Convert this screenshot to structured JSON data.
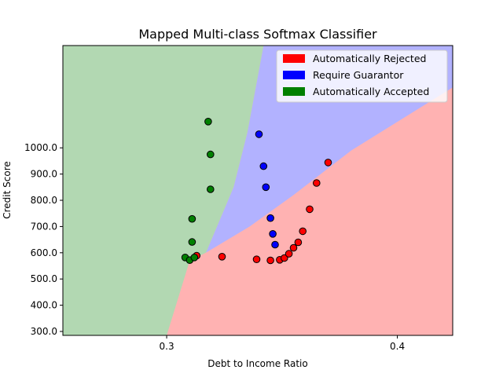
{
  "chart_data": {
    "type": "scatter",
    "title": "Mapped Multi-class Softmax Classifier",
    "xlabel": "Debt to Income Ratio",
    "ylabel": "Credit Score",
    "xlim": [
      0.255,
      0.424
    ],
    "ylim": [
      285,
      1390
    ],
    "xticks": [
      {
        "value": 0.3,
        "label": "0.3"
      },
      {
        "value": 0.4,
        "label": "0.4"
      }
    ],
    "yticks": [
      {
        "value": 300,
        "label": "300.0"
      },
      {
        "value": 400,
        "label": "400.0"
      },
      {
        "value": 500,
        "label": "500.0"
      },
      {
        "value": 600,
        "label": "600.0"
      },
      {
        "value": 700,
        "label": "700.0"
      },
      {
        "value": 800,
        "label": "800.0"
      },
      {
        "value": 900,
        "label": "900.0"
      },
      {
        "value": 1000,
        "label": "1000.0"
      }
    ],
    "grid": false,
    "legend_position": "top-right",
    "legend": [
      {
        "label": "Automatically Rejected",
        "color": "#ff0000"
      },
      {
        "label": "Require Guarantor",
        "color": "#0000ff"
      },
      {
        "label": "Automatically Accepted",
        "color": "#008000"
      }
    ],
    "regions": {
      "rejected_color": "#ffb2b2",
      "guarantor_color": "#b2b2ff",
      "accepted_color": "#b2d8b2",
      "accepted_boundary": [
        [
          0.3,
          285
        ],
        [
          0.31,
          570
        ],
        [
          0.317,
          600
        ],
        [
          0.329,
          850
        ],
        [
          0.335,
          1060
        ],
        [
          0.342,
          1390
        ]
      ],
      "rejected_boundary": [
        [
          0.317,
          600
        ],
        [
          0.336,
          700
        ],
        [
          0.355,
          820
        ],
        [
          0.38,
          990
        ],
        [
          0.424,
          1230
        ]
      ]
    },
    "series": [
      {
        "name": "Automatically Rejected",
        "color": "#ff0000",
        "points": [
          [
            0.313,
            589
          ],
          [
            0.324,
            585
          ],
          [
            0.339,
            575
          ],
          [
            0.345,
            571
          ],
          [
            0.349,
            573
          ],
          [
            0.351,
            580
          ],
          [
            0.353,
            596
          ],
          [
            0.355,
            619
          ],
          [
            0.357,
            640
          ],
          [
            0.359,
            682
          ],
          [
            0.362,
            766
          ],
          [
            0.365,
            866
          ],
          [
            0.37,
            944
          ]
        ]
      },
      {
        "name": "Require Guarantor",
        "color": "#0000ff",
        "points": [
          [
            0.34,
            1052
          ],
          [
            0.342,
            930
          ],
          [
            0.343,
            850
          ],
          [
            0.345,
            732
          ],
          [
            0.346,
            672
          ],
          [
            0.347,
            631
          ]
        ]
      },
      {
        "name": "Automatically Accepted",
        "color": "#008000",
        "points": [
          [
            0.318,
            1100
          ],
          [
            0.319,
            975
          ],
          [
            0.319,
            842
          ],
          [
            0.311,
            729
          ],
          [
            0.311,
            641
          ],
          [
            0.308,
            582
          ],
          [
            0.31,
            572
          ],
          [
            0.312,
            582
          ]
        ]
      }
    ]
  }
}
